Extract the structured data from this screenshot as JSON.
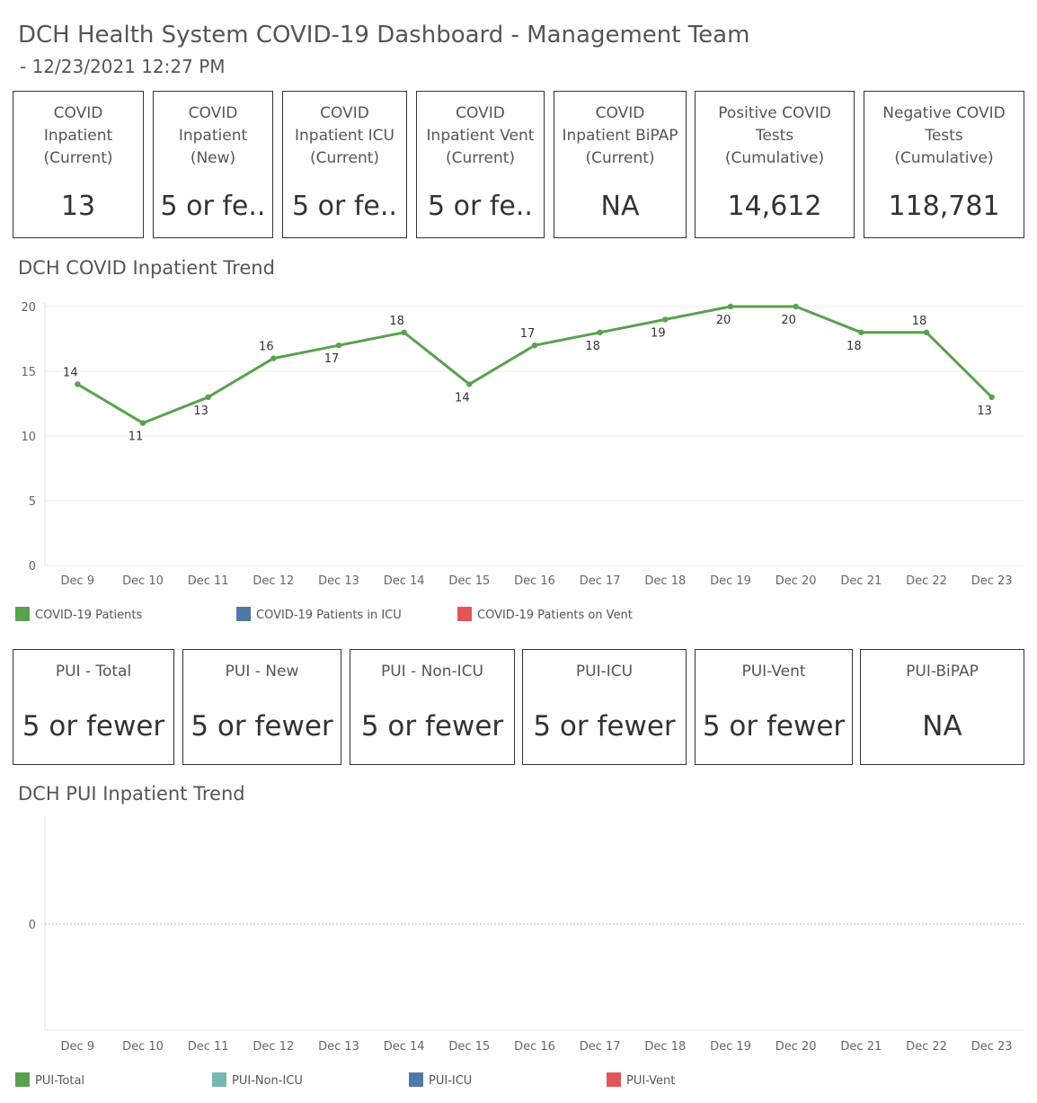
{
  "header": {
    "title": "DCH Health System COVID-19 Dashboard - Management Team",
    "subtitle": "- 12/23/2021 12:27 PM"
  },
  "kpi_top": [
    {
      "label": "COVID\nInpatient\n(Current)",
      "value": "13"
    },
    {
      "label": "COVID\nInpatient\n(New)",
      "value": "5 or fe.."
    },
    {
      "label": "COVID\nInpatient ICU\n(Current)",
      "value": "5 or fe.."
    },
    {
      "label": "COVID\nInpatient Vent\n(Current)",
      "value": "5 or fe.."
    },
    {
      "label": "COVID\nInpatient BiPAP\n(Current)",
      "value": "NA"
    },
    {
      "label": "Positive COVID\nTests\n(Cumulative)",
      "value": "14,612"
    },
    {
      "label": "Negative COVID\nTests\n(Cumulative)",
      "value": "118,781"
    }
  ],
  "trend1": {
    "title": "DCH COVID Inpatient Trend",
    "legend": [
      {
        "label": "COVID-19 Patients",
        "color": "#59a14f"
      },
      {
        "label": "COVID-19 Patients in ICU",
        "color": "#4e79a7"
      },
      {
        "label": "COVID-19 Patients on Vent",
        "color": "#e15759"
      }
    ]
  },
  "kpi_pui": [
    {
      "label": "PUI - Total",
      "value": "5 or fewer"
    },
    {
      "label": "PUI - New",
      "value": "5 or fewer"
    },
    {
      "label": "PUI - Non-ICU",
      "value": "5 or fewer"
    },
    {
      "label": "PUI-ICU",
      "value": "5 or fewer"
    },
    {
      "label": "PUI-Vent",
      "value": "5 or fewer"
    },
    {
      "label": "PUI-BiPAP",
      "value": "NA"
    }
  ],
  "trend2": {
    "title": "DCH PUI Inpatient Trend",
    "legend": [
      {
        "label": "PUI-Total",
        "color": "#59a14f"
      },
      {
        "label": "PUI-Non-ICU",
        "color": "#76b7b2"
      },
      {
        "label": "PUI-ICU",
        "color": "#4e79a7"
      },
      {
        "label": "PUI-Vent",
        "color": "#e15759"
      }
    ]
  },
  "chart_data": [
    {
      "type": "line",
      "title": "DCH COVID Inpatient Trend",
      "categories": [
        "Dec 9",
        "Dec 10",
        "Dec 11",
        "Dec 12",
        "Dec 13",
        "Dec 14",
        "Dec 15",
        "Dec 16",
        "Dec 17",
        "Dec 18",
        "Dec 19",
        "Dec 20",
        "Dec 21",
        "Dec 22",
        "Dec 23"
      ],
      "series": [
        {
          "name": "COVID-19 Patients",
          "color": "#59a14f",
          "values": [
            14,
            11,
            13,
            16,
            17,
            18,
            14,
            17,
            18,
            19,
            20,
            20,
            18,
            18,
            13
          ]
        }
      ],
      "label_positions": [
        "above",
        "below",
        "below",
        "above",
        "below",
        "above",
        "below",
        "above",
        "below",
        "below",
        "below",
        "below",
        "below",
        "above",
        "below"
      ],
      "yticks": [
        0,
        5,
        10,
        15,
        20
      ],
      "ylim": [
        0,
        20
      ],
      "grid": true,
      "legend_position": "bottom"
    },
    {
      "type": "line",
      "title": "DCH PUI Inpatient Trend",
      "categories": [
        "Dec 9",
        "Dec 10",
        "Dec 11",
        "Dec 12",
        "Dec 13",
        "Dec 14",
        "Dec 15",
        "Dec 16",
        "Dec 17",
        "Dec 18",
        "Dec 19",
        "Dec 20",
        "Dec 21",
        "Dec 22",
        "Dec 23"
      ],
      "series": [],
      "yticks": [
        0
      ],
      "grid": false,
      "legend_position": "bottom"
    }
  ]
}
